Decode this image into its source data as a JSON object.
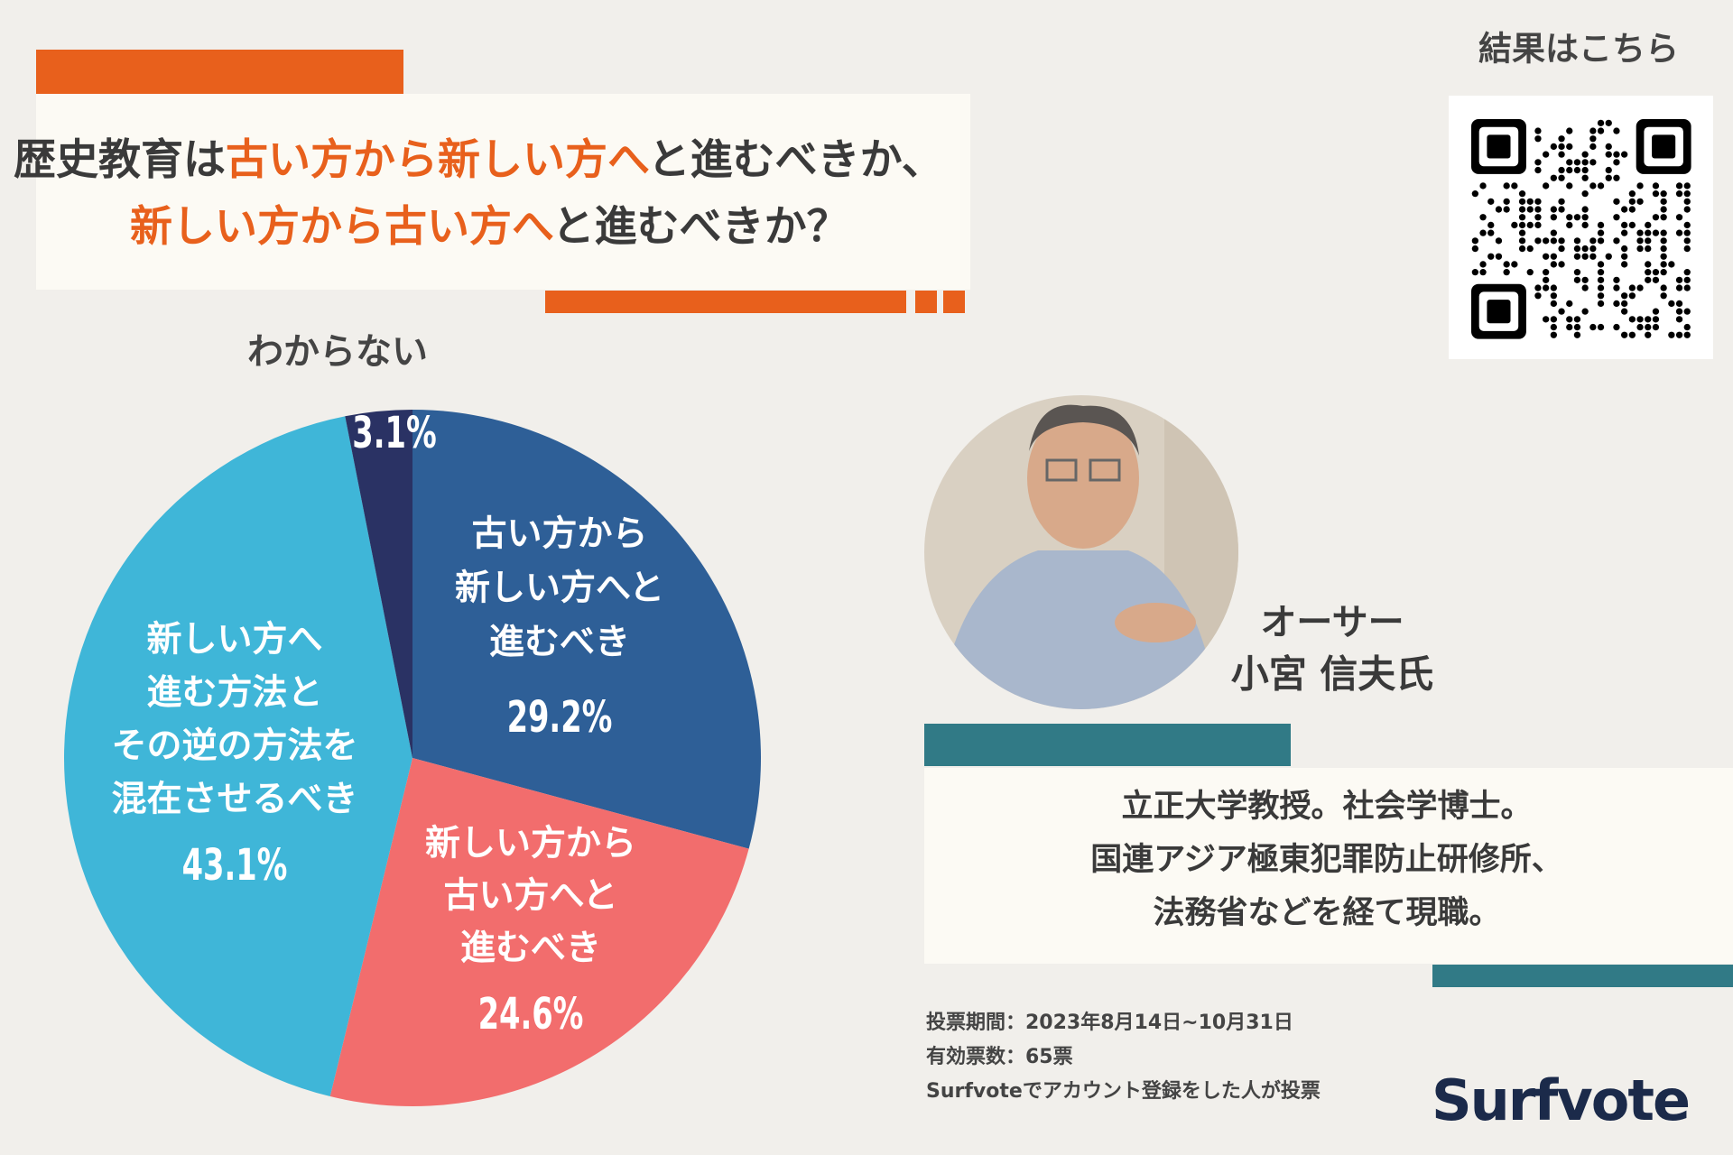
{
  "chart_data": {
    "type": "pie",
    "title": [
      [
        {
          "text": "歴史教育は",
          "emphasis": false
        },
        {
          "text": "古い方から新しい方へ",
          "emphasis": true
        },
        {
          "text": "と進むべきか、",
          "emphasis": false
        }
      ],
      [
        {
          "text": "新しい方から古い方へ",
          "emphasis": true
        },
        {
          "text": "と進むべきか？",
          "emphasis": false
        }
      ]
    ],
    "categories": [
      [
        "古い方から",
        "新しい方へと",
        "進むべき"
      ],
      [
        "新しい方から",
        "古い方へと",
        "進むべき"
      ],
      [
        "新しい方へ",
        "進む方法と",
        "その逆の方法を",
        "混在させるべき"
      ],
      [
        "わからない"
      ]
    ],
    "values": [
      29.2,
      24.6,
      43.1,
      3.1
    ],
    "value_labels": [
      "29.2%",
      "24.6%",
      "43.1%",
      "3.1%"
    ],
    "colors": [
      "#2e5f97",
      "#f26d6d",
      "#3fb6d8",
      "#2a3264"
    ]
  },
  "qr_label": "結果はこちら",
  "author": {
    "role": "オーサー",
    "name": "小宮 信夫氏",
    "bio": [
      "立正大学教授。社会学博士。",
      "国連アジア極東犯罪防止研修所、",
      "法務省などを経て現職。"
    ]
  },
  "footer": [
    "投票期間：2023年8月14日~10月31日",
    "有効票数：65票",
    "Surfvoteでアカウント登録をした人が投票"
  ],
  "logo": "Surfvote"
}
